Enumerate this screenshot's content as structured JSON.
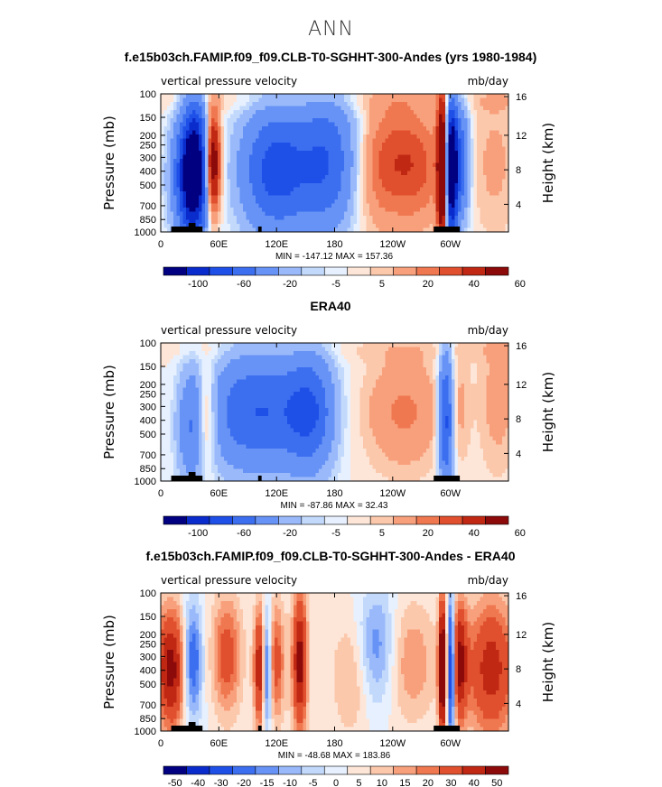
{
  "page_title": "ANN",
  "colors": [
    "#000080",
    "#0a2ccc",
    "#1e50e8",
    "#3c6ef0",
    "#6693f5",
    "#99b9fa",
    "#c2d9fc",
    "#e6f0fe",
    "#fde6d8",
    "#fcc8ac",
    "#f8a07c",
    "#f07850",
    "#e0502e",
    "#c02814",
    "#8c0a0a"
  ],
  "chart_data": [
    {
      "type": "heatmap",
      "title": "f.e15b03ch.FAMIP.f09_f09.CLB-T0-SGHHT-300-Andes (yrs 1980-1984)",
      "left_label": "vertical pressure velocity",
      "right_label": "mb/day",
      "ylabel": "Pressure (mb)",
      "y2label": "Height (km)",
      "x_ticks": [
        "0",
        "60E",
        "120E",
        "180",
        "120W",
        "60W"
      ],
      "y_ticks": [
        "100",
        "150",
        "200",
        "250",
        "300",
        "400",
        "500",
        "700",
        "850",
        "1000"
      ],
      "y2_ticks": [
        "16",
        "12",
        "8",
        "4"
      ],
      "stats": "MIN = -147.12   MAX = 157.36",
      "colorbar_labels": [
        "-100",
        "-60",
        "-20",
        "-5",
        "5",
        "20",
        "40",
        "60"
      ],
      "field": "model"
    },
    {
      "type": "heatmap",
      "title": "ERA40",
      "left_label": "vertical pressure velocity",
      "right_label": "mb/day",
      "ylabel": "Pressure (mb)",
      "y2label": "Height (km)",
      "x_ticks": [
        "0",
        "60E",
        "120E",
        "180",
        "120W",
        "60W"
      ],
      "y_ticks": [
        "100",
        "150",
        "200",
        "250",
        "300",
        "400",
        "500",
        "700",
        "850",
        "1000"
      ],
      "y2_ticks": [
        "16",
        "12",
        "8",
        "4"
      ],
      "stats": "MIN = -87.86   MAX =  32.43",
      "colorbar_labels": [
        "-100",
        "-60",
        "-20",
        "-5",
        "5",
        "20",
        "40",
        "60"
      ],
      "field": "obs"
    },
    {
      "type": "heatmap",
      "title": "f.e15b03ch.FAMIP.f09_f09.CLB-T0-SGHHT-300-Andes - ERA40",
      "left_label": "vertical pressure velocity",
      "right_label": "mb/day",
      "ylabel": "Pressure (mb)",
      "y2label": "Height (km)",
      "x_ticks": [
        "0",
        "60E",
        "120E",
        "180",
        "120W",
        "60W"
      ],
      "y_ticks": [
        "100",
        "150",
        "200",
        "250",
        "300",
        "400",
        "500",
        "700",
        "850",
        "1000"
      ],
      "y2_ticks": [
        "16",
        "12",
        "8",
        "4"
      ],
      "stats": "MIN = -48.68   MAX = 183.86",
      "colorbar_labels": [
        "-50",
        "-40",
        "-30",
        "-20",
        "-15",
        "-10",
        "-5",
        "0",
        "5",
        "10",
        "15",
        "20",
        "30",
        "40",
        "50"
      ],
      "field": "diff"
    }
  ]
}
